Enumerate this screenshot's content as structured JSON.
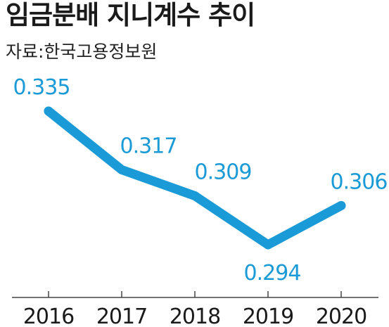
{
  "title": "임금분배 지니계수 추이",
  "source": "자료:한국고용정보원",
  "colors": {
    "line": "#1a9ad6",
    "label": "#1a9ad6",
    "axis": "#444444",
    "text": "#1a1a1a"
  },
  "chart_data": {
    "type": "line",
    "categories": [
      "2016",
      "2017",
      "2018",
      "2019",
      "2020"
    ],
    "values": [
      0.335,
      0.317,
      0.309,
      0.294,
      0.306
    ],
    "data_labels": [
      "0.335",
      "0.317",
      "0.309",
      "0.294",
      "0.306"
    ],
    "title": "임금분배 지니계수 추이",
    "xlabel": "",
    "ylabel": "",
    "grid": false,
    "legend": "none"
  }
}
